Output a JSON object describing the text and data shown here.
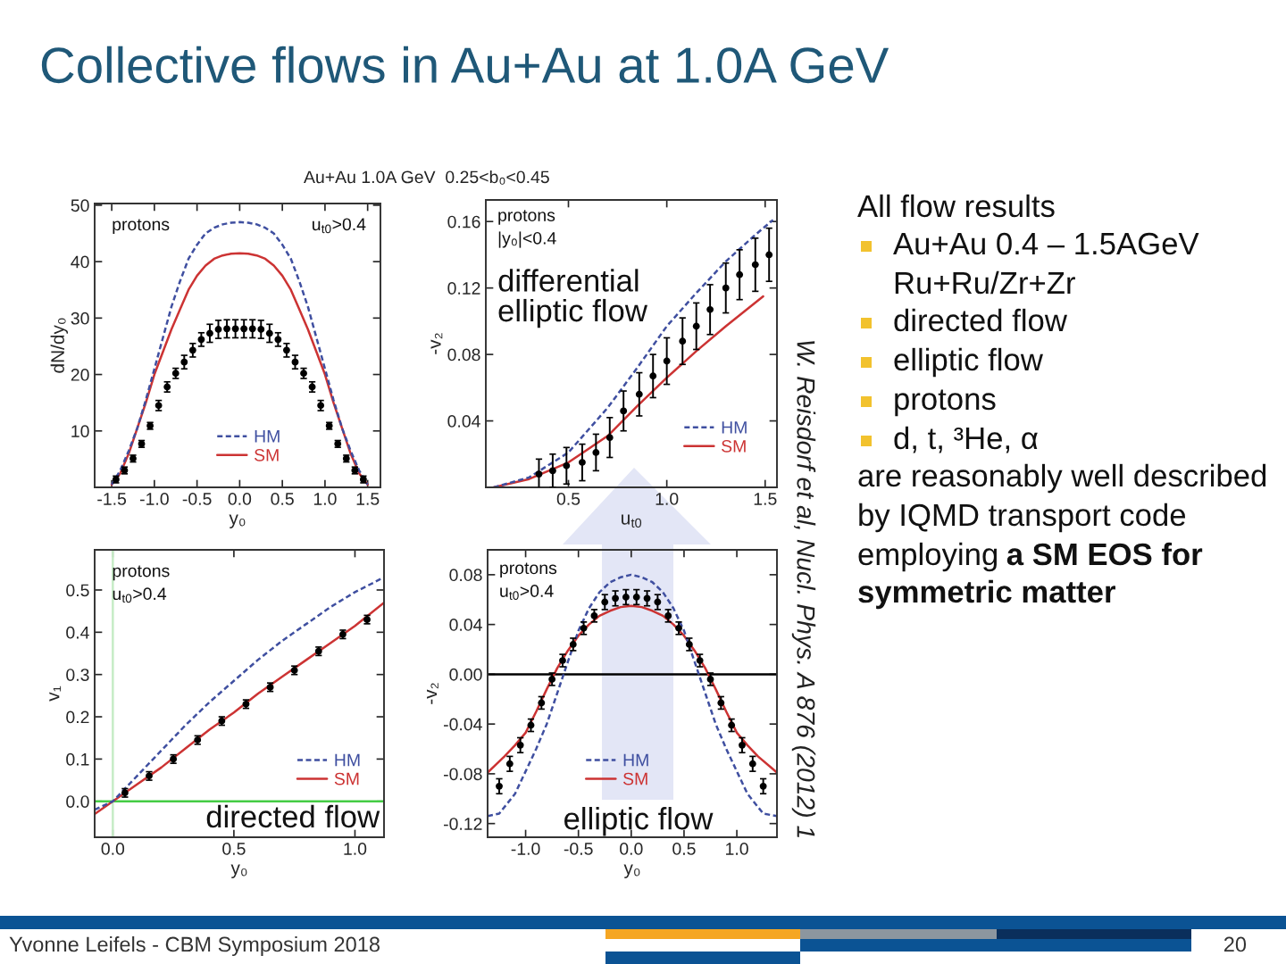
{
  "chart_data": [
    {
      "type": "scatter",
      "title": "Au+Au 1.0A GeV  0.25<b₀<0.45",
      "xlabel": "y₀",
      "ylabel": "dN/dy₀",
      "xlim": [
        -1.7,
        1.65
      ],
      "xticks": [
        -1.5,
        {
          "value": -1,
          "label": "-1.0"
        },
        -0.5,
        {
          "value": 0,
          "label": "0.0"
        },
        0.5,
        {
          "value": 1,
          "label": "1.0"
        },
        1.5
      ],
      "ylim": [
        0,
        50.3
      ],
      "yticks": [
        10,
        20,
        30,
        40,
        50
      ],
      "legend": "bottom",
      "annotations": [
        "protons",
        "u$_{t0}$>0.4"
      ],
      "series": [
        {
          "type": "line",
          "name": "HM",
          "color": "#3f4fa0",
          "line_style": "dashed",
          "x": [
            -1.5,
            -1.4,
            -1.3,
            -1.2,
            -1.1,
            -1.0,
            -0.9,
            -0.8,
            -0.7,
            -0.6,
            -0.5,
            -0.4,
            -0.3,
            -0.2,
            -0.1,
            0.0,
            0.1,
            0.2,
            0.3,
            0.4,
            0.5,
            0.6,
            0.7,
            0.8,
            0.9,
            1.0,
            1.1,
            1.2,
            1.3,
            1.4,
            1.5
          ],
          "values": [
            0.5,
            3,
            6.5,
            10.5,
            15.5,
            21,
            26.5,
            32,
            36.5,
            40.5,
            43,
            45,
            46,
            46.6,
            46.9,
            47,
            46.9,
            46.6,
            46,
            45,
            43,
            40.5,
            36.5,
            32,
            26.5,
            21,
            15.5,
            10.5,
            6.5,
            3,
            0.5
          ]
        },
        {
          "type": "line",
          "name": "SM",
          "color": "#cc3333",
          "line_style": "solid",
          "x": [
            -1.5,
            -1.4,
            -1.3,
            -1.2,
            -1.1,
            -1.0,
            -0.9,
            -0.8,
            -0.7,
            -0.6,
            -0.5,
            -0.4,
            -0.3,
            -0.2,
            -0.1,
            0.0,
            0.1,
            0.2,
            0.3,
            0.4,
            0.5,
            0.6,
            0.7,
            0.8,
            0.9,
            1.0,
            1.1,
            1.2,
            1.3,
            1.4,
            1.5
          ],
          "values": [
            0.5,
            2.5,
            6,
            10.5,
            15,
            20,
            24,
            28,
            31.5,
            35,
            37.5,
            39.3,
            40.5,
            41.1,
            41.4,
            41.5,
            41.4,
            41.1,
            40.5,
            39.3,
            37.5,
            35,
            31.5,
            28,
            24,
            20,
            15,
            10.5,
            6,
            2.5,
            0.5
          ]
        },
        {
          "type": "scatter",
          "color": "#000000",
          "marker": "circle",
          "x": [
            -1.45,
            -1.35,
            -1.25,
            -1.15,
            -1.05,
            -0.95,
            -0.85,
            -0.75,
            -0.65,
            -0.55,
            -0.45,
            -0.35,
            -0.25,
            -0.15,
            -0.05,
            0.05,
            0.15,
            0.25,
            0.35,
            0.45,
            0.55,
            0.65,
            0.75,
            0.85,
            0.95,
            1.05,
            1.15,
            1.25,
            1.35,
            1.45
          ],
          "values": [
            1.4,
            3.0,
            5.1,
            7.7,
            10.9,
            14.5,
            17.8,
            20.2,
            22.2,
            24.3,
            26.2,
            27.3,
            28.0,
            28.1,
            28.1,
            28.1,
            28.1,
            28.0,
            27.3,
            26.2,
            24.3,
            22.2,
            20.2,
            17.8,
            14.5,
            10.9,
            7.7,
            5.1,
            3.0,
            1.4
          ],
          "errors": [
            0.6,
            0.6,
            0.6,
            0.6,
            0.6,
            0.9,
            0.9,
            0.9,
            1.2,
            1.2,
            1.2,
            1.6,
            1.6,
            1.6,
            1.6,
            1.6,
            1.6,
            1.6,
            1.6,
            1.2,
            1.2,
            1.2,
            0.9,
            0.9,
            0.9,
            0.6,
            0.6,
            0.6,
            0.6,
            0.6
          ]
        }
      ]
    },
    {
      "type": "scatter",
      "xlabel": "u$_{t0}$",
      "ylabel": "-v₂",
      "xlim": [
        0.08,
        1.56
      ],
      "xticks": [
        0.5,
        {
          "value": 1,
          "label": "1.0"
        },
        1.5
      ],
      "ylim": [
        0,
        0.173
      ],
      "yticks": [
        0.04,
        0.08,
        0.12,
        0.16
      ],
      "legend": "bottom right",
      "annotations": [
        "protons",
        "|y₀|<0.4",
        "differential\nelliptic flow"
      ],
      "series": [
        {
          "type": "line",
          "name": "HM",
          "color": "#3f4fa0",
          "line_style": "dashed",
          "x": [
            0.12,
            0.3,
            0.5,
            0.7,
            0.85,
            1.0,
            1.15,
            1.3,
            1.45,
            1.54
          ],
          "values": [
            0.0,
            0.006,
            0.021,
            0.048,
            0.072,
            0.097,
            0.117,
            0.136,
            0.152,
            0.161
          ]
        },
        {
          "type": "line",
          "name": "SM",
          "color": "#cc3333",
          "line_style": "solid",
          "x": [
            0.12,
            0.3,
            0.5,
            0.7,
            0.85,
            1.0,
            1.15,
            1.3,
            1.49
          ],
          "values": [
            0.0,
            0.005,
            0.015,
            0.031,
            0.049,
            0.066,
            0.082,
            0.097,
            0.115
          ]
        },
        {
          "type": "scatter",
          "color": "#000000",
          "marker": "circle",
          "x": [
            0.35,
            0.42,
            0.49,
            0.57,
            0.64,
            0.71,
            0.78,
            0.86,
            0.93,
            1.0,
            1.08,
            1.15,
            1.22,
            1.3,
            1.37,
            1.45,
            1.52
          ],
          "values": [
            0.008,
            0.01,
            0.013,
            0.015,
            0.021,
            0.03,
            0.046,
            0.056,
            0.067,
            0.076,
            0.088,
            0.097,
            0.107,
            0.12,
            0.128,
            0.134,
            0.14
          ],
          "errors": [
            0.009,
            0.01,
            0.011,
            0.011,
            0.011,
            0.012,
            0.012,
            0.013,
            0.013,
            0.014,
            0.014,
            0.014,
            0.015,
            0.015,
            0.015,
            0.016,
            0.016
          ]
        }
      ]
    },
    {
      "type": "scatter",
      "xlabel": "y₀",
      "ylabel": "v₁",
      "xlim": [
        -0.075,
        1.12
      ],
      "xticks": [
        {
          "value": 0,
          "label": "0.0"
        },
        0.5,
        {
          "value": 1,
          "label": "1.0"
        }
      ],
      "ylim": [
        -0.085,
        0.595
      ],
      "yticks": [
        {
          "value": 0,
          "label": "0.0"
        },
        0.1,
        0.2,
        0.3,
        0.4,
        0.5
      ],
      "legend": "bottom right",
      "annotations": [
        "protons",
        "u$_{t0}$>0.4",
        "directed flow"
      ],
      "ref_lines": [
        {
          "axis": "y",
          "value": 0,
          "color": "#44cc44"
        },
        {
          "axis": "x",
          "value": 0,
          "color": "#c6ecc6"
        }
      ],
      "series": [
        {
          "type": "line",
          "name": "HM",
          "color": "#3f4fa0",
          "line_style": "dashed",
          "x": [
            -0.075,
            0.0,
            0.1,
            0.2,
            0.3,
            0.4,
            0.5,
            0.6,
            0.7,
            0.8,
            0.9,
            1.0,
            1.12
          ],
          "values": [
            -0.02,
            0.0,
            0.06,
            0.12,
            0.18,
            0.235,
            0.285,
            0.335,
            0.38,
            0.42,
            0.46,
            0.495,
            0.53
          ]
        },
        {
          "type": "line",
          "name": "SM",
          "color": "#cc3333",
          "line_style": "solid",
          "x": [
            -0.075,
            0.0,
            0.1,
            0.2,
            0.3,
            0.4,
            0.5,
            0.6,
            0.7,
            0.8,
            0.9,
            1.0,
            1.12
          ],
          "values": [
            -0.03,
            0.0,
            0.04,
            0.08,
            0.125,
            0.17,
            0.21,
            0.255,
            0.295,
            0.335,
            0.375,
            0.415,
            0.47
          ]
        },
        {
          "type": "scatter",
          "color": "#000000",
          "marker": "circle",
          "x": [
            0.05,
            0.15,
            0.25,
            0.35,
            0.45,
            0.55,
            0.65,
            0.75,
            0.85,
            0.95,
            1.05
          ],
          "values": [
            0.02,
            0.06,
            0.1,
            0.145,
            0.19,
            0.23,
            0.27,
            0.31,
            0.355,
            0.395,
            0.43
          ],
          "errors": [
            0.01,
            0.01,
            0.01,
            0.01,
            0.01,
            0.01,
            0.01,
            0.01,
            0.01,
            0.01,
            0.01
          ]
        }
      ]
    },
    {
      "type": "scatter",
      "xlabel": "y₀",
      "ylabel": "-v₂",
      "xlim": [
        -1.36,
        1.38
      ],
      "xticks": [
        {
          "value": -1,
          "label": "-1.0"
        },
        -0.5,
        {
          "value": 0,
          "label": "0.0"
        },
        0.5,
        {
          "value": 1,
          "label": "1.0"
        }
      ],
      "ylim": [
        -0.131,
        0.1
      ],
      "yticks": [
        -0.12,
        -0.08,
        -0.04,
        {
          "value": 0,
          "label": "0.00"
        },
        0.04,
        0.08
      ],
      "legend": "bottom",
      "annotations": [
        "protons",
        "u$_{t0}$>0.4",
        "elliptic flow"
      ],
      "ref_lines": [
        {
          "axis": "y",
          "value": 0,
          "color": "#000000"
        }
      ],
      "series": [
        {
          "type": "line",
          "name": "HM",
          "color": "#3f4fa0",
          "line_style": "dashed",
          "x": [
            -1.36,
            -1.25,
            -1.1,
            -1.0,
            -0.9,
            -0.8,
            -0.7,
            -0.6,
            -0.5,
            -0.4,
            -0.3,
            -0.2,
            -0.1,
            0.0,
            0.1,
            0.2,
            0.3,
            0.4,
            0.5,
            0.6,
            0.7,
            0.8,
            0.9,
            1.0,
            1.1,
            1.25,
            1.38
          ],
          "values": [
            -0.114,
            -0.112,
            -0.096,
            -0.078,
            -0.06,
            -0.04,
            -0.015,
            0.01,
            0.035,
            0.053,
            0.066,
            0.074,
            0.078,
            0.08,
            0.078,
            0.074,
            0.066,
            0.053,
            0.035,
            0.01,
            -0.015,
            -0.04,
            -0.06,
            -0.078,
            -0.096,
            -0.112,
            -0.114
          ]
        },
        {
          "type": "line",
          "name": "SM",
          "color": "#cc3333",
          "line_style": "solid",
          "x": [
            -1.36,
            -1.2,
            -1.1,
            -1.0,
            -0.9,
            -0.8,
            -0.7,
            -0.6,
            -0.5,
            -0.4,
            -0.3,
            -0.2,
            -0.1,
            0.0,
            0.1,
            0.2,
            0.3,
            0.4,
            0.5,
            0.6,
            0.7,
            0.8,
            0.9,
            1.0,
            1.1,
            1.2,
            1.38
          ],
          "values": [
            -0.079,
            -0.066,
            -0.057,
            -0.047,
            -0.03,
            -0.012,
            0.005,
            0.019,
            0.031,
            0.04,
            0.047,
            0.051,
            0.054,
            0.055,
            0.054,
            0.051,
            0.047,
            0.04,
            0.031,
            0.019,
            0.005,
            -0.012,
            -0.03,
            -0.047,
            -0.057,
            -0.066,
            -0.079
          ]
        },
        {
          "type": "scatter",
          "color": "#000000",
          "marker": "circle",
          "x": [
            -1.25,
            -1.15,
            -1.05,
            -0.95,
            -0.85,
            -0.75,
            -0.65,
            -0.55,
            -0.45,
            -0.35,
            -0.25,
            -0.15,
            -0.05,
            0.05,
            0.15,
            0.25,
            0.35,
            0.45,
            0.55,
            0.65,
            0.75,
            0.85,
            0.95,
            1.05,
            1.15,
            1.25
          ],
          "values": [
            -0.09,
            -0.072,
            -0.057,
            -0.041,
            -0.023,
            -0.004,
            0.011,
            0.024,
            0.037,
            0.047,
            0.058,
            0.061,
            0.062,
            0.062,
            0.061,
            0.058,
            0.047,
            0.037,
            0.024,
            0.011,
            -0.004,
            -0.023,
            -0.041,
            -0.057,
            -0.072,
            -0.09
          ],
          "errors": [
            0.006,
            0.006,
            0.006,
            0.005,
            0.005,
            0.005,
            0.005,
            0.005,
            0.005,
            0.005,
            0.006,
            0.006,
            0.006,
            0.006,
            0.006,
            0.006,
            0.005,
            0.005,
            0.005,
            0.005,
            0.005,
            0.005,
            0.005,
            0.006,
            0.006,
            0.006
          ]
        }
      ]
    },
    {
      "type": "other",
      "title": "Collective flows in Au+Au at 1.0A GeV",
      "annotations": [
        "All flow results",
        "Au+Au 0.4 – 1.5AGeV",
        "Ru+Ru/Zr+Zr",
        "directed flow",
        "elliptic flow",
        "protons",
        "d, t, ³He, α",
        "are reasonably well described",
        "by IQMD transport code",
        "employing",
        "a SM EOS for",
        "symmetric matter",
        "W. Reisdorf et al, Nucl. Phys. A 876 (2012) 1",
        "Yvonne Leifels - CBM Symposium 2018",
        "20"
      ]
    }
  ]
}
